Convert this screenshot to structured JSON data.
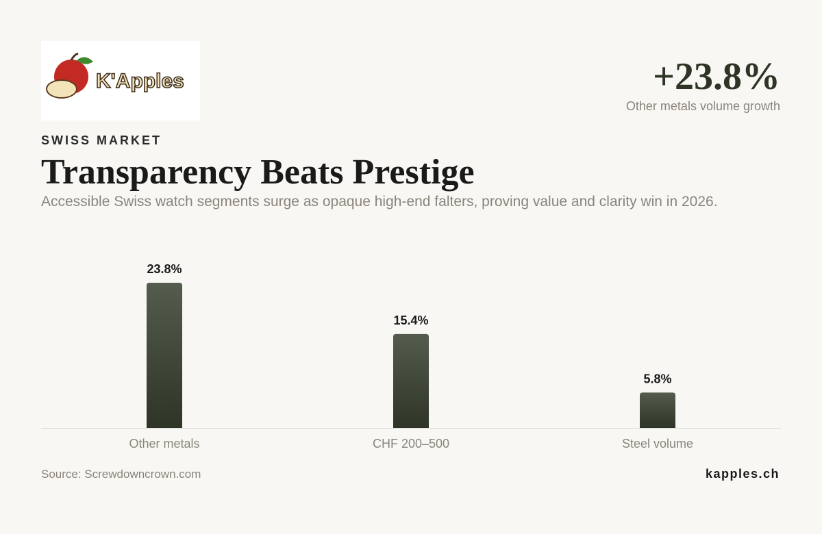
{
  "header": {
    "logo_text": "K'Apples",
    "kicker": "SWISS MARKET",
    "highlight_value": "+23.8%",
    "highlight_label": "Other metals volume growth"
  },
  "chart_data": {
    "type": "bar",
    "title": "Transparency Beats Prestige",
    "subtitle": "Accessible Swiss watch segments surge as opaque high-end falters, proving value and clarity win in 2026.",
    "categories": [
      "Other metals",
      "CHF 200–500",
      "Steel volume"
    ],
    "values": [
      23.8,
      15.4,
      5.8
    ],
    "value_labels": [
      "23.8%",
      "15.4%",
      "5.8%"
    ],
    "color": "#2e3526"
  },
  "footer": {
    "source": "Source: Screwdowncrown.com",
    "brand": "kapples.ch"
  }
}
